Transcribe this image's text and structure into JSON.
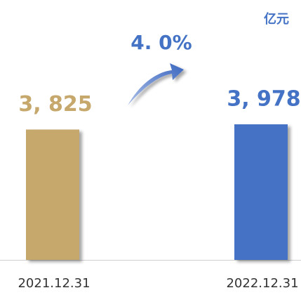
{
  "chart_data": {
    "type": "bar",
    "unit": "亿元",
    "annotation": "4. 0%",
    "categories": [
      "2021.12.31",
      "2022.12.31"
    ],
    "values": [
      3825,
      3978
    ],
    "value_labels": [
      "3, 825",
      "3, 978"
    ],
    "colors": [
      "#c6a76c",
      "#4472c4"
    ]
  }
}
